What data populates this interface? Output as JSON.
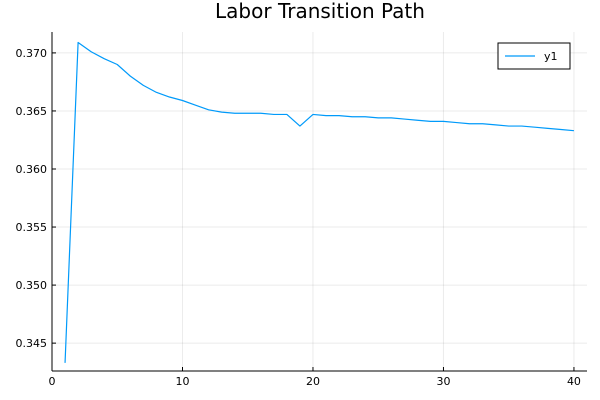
{
  "chart_data": {
    "type": "line",
    "title": "Labor Transition Path",
    "xlabel": "",
    "ylabel": "",
    "xlim": [
      0,
      41
    ],
    "ylim": [
      0.3426,
      0.3718
    ],
    "x_ticks": [
      0,
      10,
      20,
      30,
      40
    ],
    "x_tick_labels": [
      "0",
      "10",
      "20",
      "30",
      "40"
    ],
    "y_ticks": [
      0.345,
      0.35,
      0.355,
      0.36,
      0.365,
      0.37
    ],
    "y_tick_labels": [
      "0.345",
      "0.350",
      "0.355",
      "0.360",
      "0.365",
      "0.370"
    ],
    "grid": true,
    "legend": {
      "position": "top-right",
      "entries": [
        "y1"
      ]
    },
    "series": [
      {
        "name": "y1",
        "color": "#009AFA",
        "x": [
          1,
          2,
          3,
          4,
          5,
          6,
          7,
          8,
          9,
          10,
          11,
          12,
          13,
          14,
          15,
          16,
          17,
          18,
          19,
          20,
          21,
          22,
          23,
          24,
          25,
          26,
          27,
          28,
          29,
          30,
          31,
          32,
          33,
          34,
          35,
          36,
          37,
          38,
          39,
          40
        ],
        "y": [
          0.3433,
          0.3709,
          0.3701,
          0.3695,
          0.369,
          0.368,
          0.3672,
          0.3666,
          0.3662,
          0.3659,
          0.3655,
          0.3651,
          0.3649,
          0.3648,
          0.3648,
          0.3648,
          0.3647,
          0.3647,
          0.3637,
          0.3647,
          0.3646,
          0.3646,
          0.3645,
          0.3645,
          0.3644,
          0.3644,
          0.3643,
          0.3642,
          0.3641,
          0.3641,
          0.364,
          0.3639,
          0.3639,
          0.3638,
          0.3637,
          0.3637,
          0.3636,
          0.3635,
          0.3634,
          0.3633
        ]
      }
    ]
  }
}
